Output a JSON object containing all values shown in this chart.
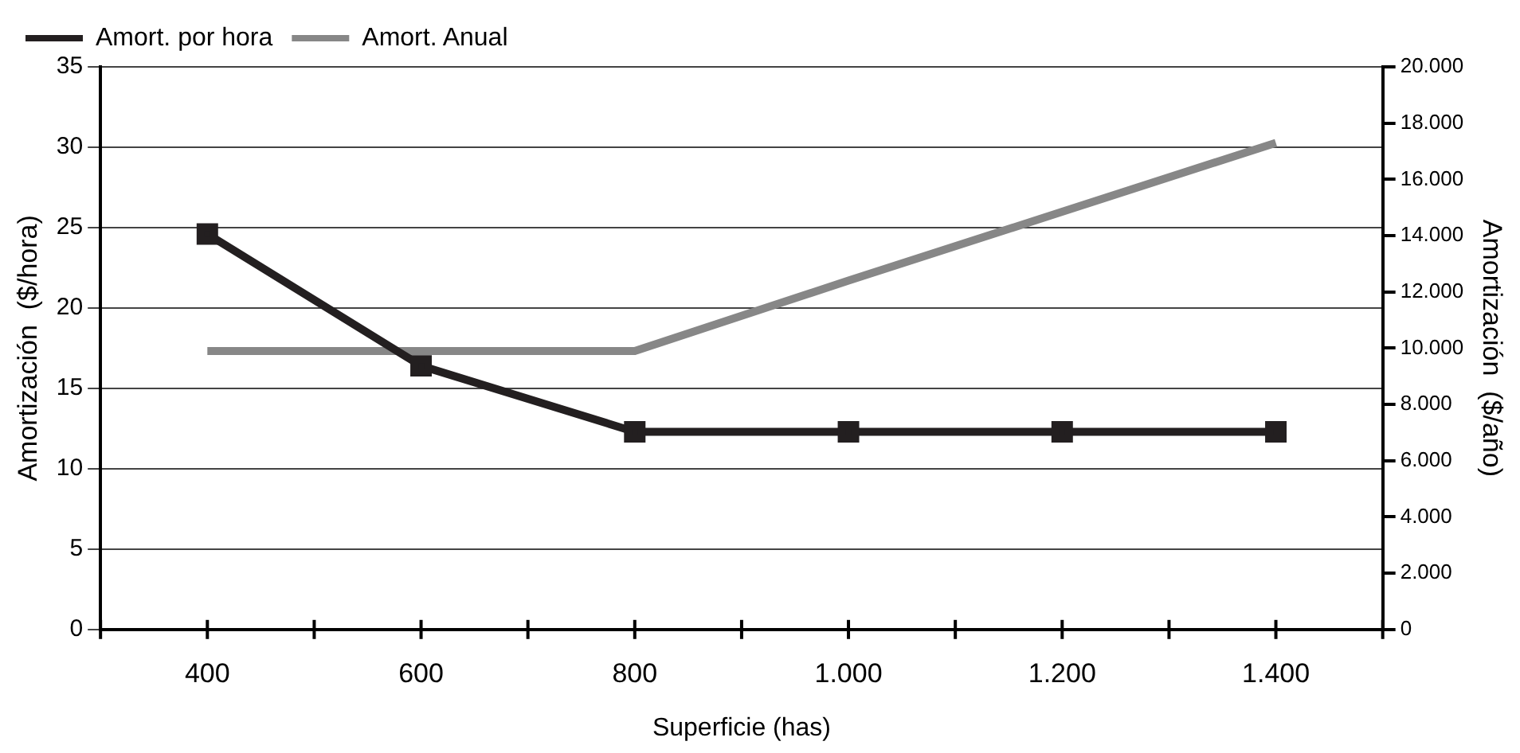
{
  "chart_data": {
    "type": "line",
    "xlabel": "Superficie (has)",
    "ylabel": "Amortización  ($/hora)",
    "y2label": "Amortización  ($/año)",
    "categories": [
      "400",
      "600",
      "800",
      "1.000",
      "1.200",
      "1.400"
    ],
    "series": [
      {
        "name": "Amort. por hora",
        "color": "#231f20",
        "marker": "square",
        "values": [
          24.6,
          16.4,
          12.3,
          12.3,
          12.3,
          12.3
        ]
      },
      {
        "name": "Amort. Anual",
        "color": "#878787",
        "marker": "none",
        "axis": "y2",
        "values": [
          9900,
          9900,
          9900,
          12400,
          14850,
          17300
        ]
      }
    ],
    "ylim": [
      0,
      35
    ],
    "yticks": [
      0,
      5,
      10,
      15,
      20,
      25,
      30,
      35
    ],
    "y2lim": [
      0,
      20000
    ],
    "y2ticks": [
      {
        "value": 0,
        "label": "0"
      },
      {
        "value": 2000,
        "label": "2.000"
      },
      {
        "value": 4000,
        "label": "4.000"
      },
      {
        "value": 6000,
        "label": "6.000"
      },
      {
        "value": 8000,
        "label": "8.000"
      },
      {
        "value": 10000,
        "label": "10.000"
      },
      {
        "value": 12000,
        "label": "12.000"
      },
      {
        "value": 14000,
        "label": "14.000"
      },
      {
        "value": 16000,
        "label": "16.000"
      },
      {
        "value": 18000,
        "label": "18.000"
      },
      {
        "value": 20000,
        "label": "20.000"
      }
    ],
    "grid": "y",
    "legend": "top left"
  }
}
